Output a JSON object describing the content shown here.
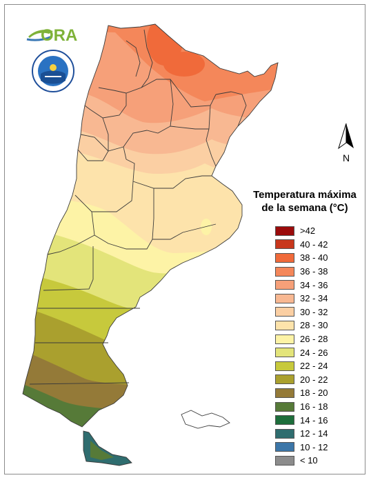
{
  "legend": {
    "title_line1": "Temperatura máxima",
    "title_line2": "de la semana (°C)",
    "items": [
      {
        "label": ">42",
        "color": "#9b0b0b"
      },
      {
        "label": "40 - 42",
        "color": "#c8371c"
      },
      {
        "label": "38 - 40",
        "color": "#f06a3a"
      },
      {
        "label": "36 - 38",
        "color": "#f4875a"
      },
      {
        "label": "34 - 36",
        "color": "#f6a079"
      },
      {
        "label": "32 - 34",
        "color": "#f8b892"
      },
      {
        "label": "30 - 32",
        "color": "#fbcfa3"
      },
      {
        "label": "28 - 30",
        "color": "#fde3ab"
      },
      {
        "label": "26 - 28",
        "color": "#fdf3a6"
      },
      {
        "label": "24 - 26",
        "color": "#e3e47a"
      },
      {
        "label": "22 - 24",
        "color": "#c7c93c"
      },
      {
        "label": "20 - 22",
        "color": "#aaa02e"
      },
      {
        "label": "18 - 20",
        "color": "#947a38"
      },
      {
        "label": "16 - 18",
        "color": "#567a38"
      },
      {
        "label": "14 - 16",
        "color": "#1d6e3b"
      },
      {
        "label": "12 - 14",
        "color": "#2f6d6f"
      },
      {
        "label": "10 - 12",
        "color": "#3c76a8"
      },
      {
        "label": "< 10",
        "color": "#8c8c8c"
      }
    ]
  },
  "north_arrow": {
    "label": "N"
  },
  "logo": {
    "text": "ORA"
  }
}
